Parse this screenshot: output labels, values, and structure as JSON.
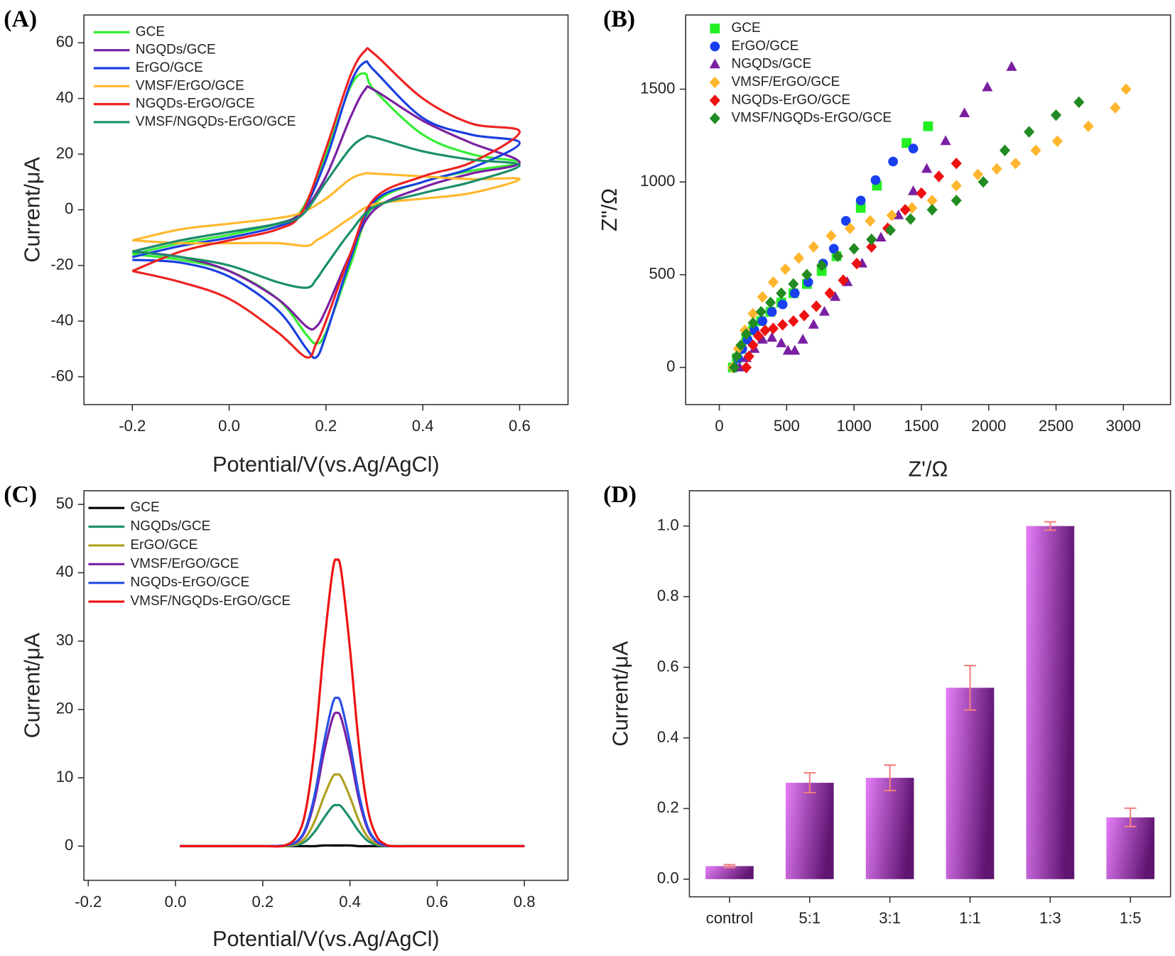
{
  "chart_data": [
    {
      "type": "line",
      "panel_label": "(A)",
      "x_label": "Potential/V(vs.Ag/AgCl)",
      "y_label": "Current/μA",
      "xlim": [
        -0.3,
        0.7
      ],
      "ylim": [
        -70,
        70
      ],
      "xticks": [
        -0.2,
        {
          "value": 0,
          "label": "0.0"
        },
        0.2,
        0.4,
        0.6
      ],
      "yticks": [
        -60,
        -40,
        -20,
        0,
        20,
        40,
        60
      ],
      "x": [
        -0.2,
        -0.1,
        0,
        0.1,
        0.15,
        0.2,
        0.25,
        0.28,
        0.3,
        0.4,
        0.5,
        0.6,
        0.5,
        0.4,
        0.3,
        0.25,
        0.2,
        0.18,
        0.16,
        0.1,
        0,
        -0.1,
        -0.2
      ],
      "series": [
        {
          "name": "GCE",
          "color": "#33ee33",
          "values": [
            -16,
            -12,
            -9,
            -5,
            0,
            20,
            44,
            49,
            43,
            27,
            20,
            17,
            14,
            10,
            2,
            -20,
            -44,
            -48,
            -45,
            -32,
            -22,
            -18,
            -16
          ]
        },
        {
          "name": "NGQDs/GCE",
          "color": "#7a1fa2",
          "values": [
            -15,
            -11,
            -8,
            -5,
            -1,
            12,
            33,
            43,
            43,
            32,
            24,
            17,
            13,
            8,
            0,
            -16,
            -36,
            -42,
            -42,
            -32,
            -22,
            -17,
            -15
          ]
        },
        {
          "name": "ErGO/GCE",
          "color": "#1a3fe0",
          "values": [
            -17,
            -13,
            -10,
            -6,
            -1,
            18,
            45,
            53,
            50,
            33,
            27,
            24,
            15,
            10,
            3,
            -18,
            -45,
            -53,
            -50,
            -36,
            -24,
            -19,
            -18
          ]
        },
        {
          "name": "VMSF/ErGO/GCE",
          "color": "#ffb92e",
          "values": [
            -11,
            -7,
            -5,
            -3,
            -1,
            4,
            11,
            13,
            13,
            12,
            11,
            11,
            6,
            4,
            2,
            -3,
            -9,
            -11,
            -13,
            -12,
            -12,
            -12,
            -11
          ]
        },
        {
          "name": "NGQDs-ErGO/GCE",
          "color": "#ee2222",
          "values": [
            -22,
            -15,
            -11,
            -7,
            -1,
            22,
            48,
            57,
            56,
            40,
            31,
            28,
            17,
            12,
            4,
            -16,
            -40,
            -48,
            -53,
            -44,
            -32,
            -26,
            -22
          ]
        },
        {
          "name": "VMSF/NGQDs-ErGO/GCE",
          "color": "#1a8f6a",
          "values": [
            -15,
            -11,
            -8,
            -5,
            -2,
            10,
            22,
            26,
            26,
            21,
            18,
            16,
            10,
            6,
            1,
            -8,
            -20,
            -25,
            -28,
            -26,
            -20,
            -17,
            -15
          ]
        }
      ]
    },
    {
      "type": "scatter",
      "panel_label": "(B)",
      "x_label": "Z'/Ω",
      "y_label": "Z\"/Ω",
      "xlim": [
        -250,
        3350
      ],
      "ylim": [
        -200,
        1900
      ],
      "xticks": [
        0,
        500,
        1000,
        1500,
        2000,
        2500,
        3000
      ],
      "yticks": [
        0,
        500,
        1000,
        1500
      ],
      "series": [
        {
          "name": "GCE",
          "color": "#22ee22",
          "marker": "square",
          "x": [
            100,
            130,
            160,
            200,
            250,
            310,
            380,
            460,
            550,
            650,
            760,
            870,
            1050,
            1170,
            1390,
            1550
          ],
          "values": [
            0,
            50,
            100,
            150,
            200,
            250,
            300,
            350,
            400,
            450,
            520,
            600,
            860,
            980,
            1210,
            1300
          ]
        },
        {
          "name": "ErGO/GCE",
          "color": "#1a3ff0",
          "marker": "circle",
          "x": [
            110,
            140,
            170,
            210,
            260,
            320,
            390,
            470,
            560,
            660,
            770,
            850,
            940,
            1050,
            1160,
            1290,
            1440
          ],
          "values": [
            0,
            50,
            100,
            150,
            200,
            250,
            300,
            340,
            400,
            460,
            560,
            640,
            790,
            900,
            1010,
            1110,
            1180
          ]
        },
        {
          "name": "NGQDs/GCE",
          "color": "#7a1fa2",
          "marker": "triangle",
          "x": [
            150,
            200,
            260,
            320,
            390,
            460,
            510,
            560,
            620,
            700,
            780,
            860,
            950,
            1060,
            1200,
            1330,
            1440,
            1540,
            1680,
            1820,
            1990,
            2170
          ],
          "values": [
            0,
            50,
            100,
            150,
            160,
            130,
            90,
            90,
            150,
            230,
            300,
            380,
            460,
            560,
            700,
            820,
            950,
            1070,
            1220,
            1370,
            1510,
            1620
          ]
        },
        {
          "name": "VMSF/ErGO/GCE",
          "color": "#ffb62e",
          "marker": "diamond",
          "x": [
            100,
            140,
            190,
            250,
            320,
            400,
            490,
            590,
            700,
            830,
            970,
            1120,
            1280,
            1430,
            1580,
            1760,
            1920,
            2060,
            2200,
            2350,
            2510,
            2740,
            2940,
            3020
          ],
          "values": [
            0,
            100,
            200,
            290,
            380,
            460,
            530,
            590,
            650,
            710,
            750,
            790,
            820,
            860,
            900,
            980,
            1040,
            1070,
            1100,
            1170,
            1220,
            1300,
            1400,
            1500
          ]
        },
        {
          "name": "NGQDs-ErGO/GCE",
          "color": "#ee1111",
          "marker": "diamond",
          "x": [
            200,
            220,
            250,
            290,
            340,
            400,
            470,
            550,
            630,
            720,
            820,
            920,
            1020,
            1130,
            1250,
            1380,
            1500,
            1630,
            1760
          ],
          "values": [
            0,
            60,
            120,
            170,
            200,
            210,
            230,
            250,
            280,
            330,
            400,
            470,
            560,
            650,
            750,
            850,
            940,
            1030,
            1100
          ]
        },
        {
          "name": "VMSF/NGQDs-ErGO/GCE",
          "color": "#228b22",
          "marker": "diamond",
          "x": [
            110,
            130,
            160,
            200,
            250,
            310,
            380,
            460,
            550,
            650,
            760,
            880,
            1000,
            1130,
            1270,
            1420,
            1580,
            1760,
            1960,
            2120,
            2300,
            2500,
            2670
          ],
          "values": [
            0,
            60,
            120,
            180,
            240,
            300,
            350,
            400,
            450,
            500,
            550,
            600,
            640,
            690,
            740,
            800,
            850,
            900,
            1000,
            1170,
            1270,
            1360,
            1430
          ]
        }
      ]
    },
    {
      "type": "line",
      "panel_label": "(C)",
      "x_label": "Potential/V(vs.Ag/AgCl)",
      "y_label": "Current/μA",
      "xlim": [
        -0.21,
        0.9
      ],
      "ylim": [
        -5,
        52
      ],
      "xticks": [
        -0.2,
        {
          "value": 0,
          "label": "0.0"
        },
        0.2,
        0.4,
        0.6,
        0.8
      ],
      "yticks": [
        0,
        10,
        20,
        30,
        40,
        50
      ],
      "x": [
        0.01,
        0.1,
        0.2,
        0.25,
        0.28,
        0.3,
        0.32,
        0.34,
        0.36,
        0.37,
        0.38,
        0.4,
        0.42,
        0.44,
        0.46,
        0.48,
        0.5,
        0.55,
        0.6,
        0.7,
        0.8
      ],
      "series": [
        {
          "name": "GCE",
          "color": "#000000",
          "values": [
            0,
            0,
            0,
            0,
            0,
            0,
            0,
            0.1,
            0.1,
            0.1,
            0.1,
            0.1,
            0,
            0,
            0,
            0,
            0,
            0,
            0,
            0,
            0
          ]
        },
        {
          "name": "NGQDs/GCE",
          "color": "#1a8f6a",
          "values": [
            0,
            0,
            0,
            0,
            0.2,
            0.8,
            2.2,
            4.1,
            5.8,
            6,
            5.8,
            4.1,
            2.2,
            0.8,
            0.2,
            0,
            0,
            0,
            0,
            0,
            0
          ]
        },
        {
          "name": "ErGO/GCE",
          "color": "#b0a020",
          "values": [
            0,
            0,
            0,
            0,
            0.4,
            1.4,
            3.8,
            7.2,
            10.1,
            10.5,
            10.1,
            7.2,
            3.8,
            1.4,
            0.4,
            0.1,
            0,
            0,
            0,
            0,
            0
          ]
        },
        {
          "name": "VMSF/ErGO/GCE",
          "color": "#7a1fa2",
          "values": [
            0,
            0,
            0,
            0.1,
            0.7,
            2.6,
            7,
            13.5,
            18.7,
            19.5,
            18.7,
            13.5,
            7,
            2.6,
            0.7,
            0.1,
            0,
            0,
            0,
            0,
            0
          ]
        },
        {
          "name": "NGQDs-ErGO/GCE",
          "color": "#2a4fe8",
          "values": [
            0,
            0,
            0,
            0.1,
            0.8,
            2.9,
            7.8,
            15,
            20.8,
            21.7,
            20.8,
            15,
            7.8,
            2.9,
            0.8,
            0.2,
            0,
            0,
            0,
            0,
            0
          ]
        },
        {
          "name": "VMSF/NGQDs-ErGO/GCE",
          "color": "#ee1111",
          "values": [
            0,
            0,
            0,
            0.1,
            1.6,
            5.7,
            15.1,
            28.9,
            40.2,
            41.9,
            40.2,
            28.9,
            15.1,
            5.7,
            1.6,
            0.3,
            0,
            0,
            0,
            0,
            0
          ]
        }
      ]
    },
    {
      "type": "bar",
      "panel_label": "(D)",
      "y_label": "Current/μA",
      "ylim": [
        -0.05,
        1.1
      ],
      "yticks": [
        {
          "value": 0,
          "label": "0.0"
        },
        0.2,
        0.4,
        0.6,
        0.8,
        {
          "value": 1,
          "label": "1.0"
        }
      ],
      "categories": [
        "control",
        "5:1",
        "3:1",
        "1:1",
        "1:3",
        "1:5"
      ],
      "values": [
        0.037,
        0.273,
        0.287,
        0.542,
        1.0,
        0.175
      ],
      "errors": [
        0.004,
        0.028,
        0.036,
        0.063,
        0.012,
        0.026
      ],
      "color": "#5e1470",
      "error_color": "#f08080"
    }
  ]
}
